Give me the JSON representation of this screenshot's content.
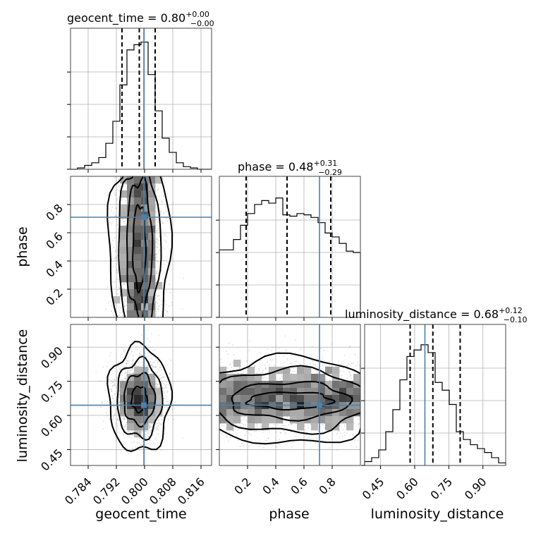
{
  "chart_data": {
    "type": "corner",
    "colors": {
      "truth": "#4682b4",
      "contour": "#000000",
      "samples": "#999999"
    },
    "grid": true,
    "parameters": [
      {
        "name": "geocent_time",
        "range": [
          0.779,
          0.819
        ],
        "ticks": [
          "0.784",
          "0.792",
          "0.800",
          "0.808",
          "0.816"
        ],
        "truth": 0.7998
      },
      {
        "name": "phase",
        "range": [
          0.0,
          1.0
        ],
        "ticks": [
          "0.2",
          "0.4",
          "0.6",
          "0.8"
        ],
        "truth": 0.71
      },
      {
        "name": "luminosity_distance",
        "range": [
          0.38,
          1.0
        ],
        "ticks": [
          "0.45",
          "0.60",
          "0.75",
          "0.90"
        ],
        "truth": 0.645
      }
    ],
    "titles": [
      {
        "param": "geocent_time",
        "text": "geocent_time = 0.80",
        "plus": "+0.00",
        "minus": "−0.00",
        "quantiles": [
          0.7936,
          0.7985,
          0.803
        ]
      },
      {
        "param": "phase",
        "text": "phase = 0.48",
        "plus": "+0.31",
        "minus": "−0.29",
        "quantiles": [
          0.19,
          0.48,
          0.79
        ]
      },
      {
        "param": "luminosity_distance",
        "text": "luminosity_distance = 0.68",
        "plus": "+0.12",
        "minus": "−0.10",
        "quantiles": [
          0.58,
          0.68,
          0.8
        ]
      }
    ],
    "marginals": [
      {
        "param": "geocent_time",
        "bin_edges": [
          0.779,
          0.781,
          0.783,
          0.785,
          0.787,
          0.789,
          0.791,
          0.793,
          0.795,
          0.797,
          0.799,
          0.801,
          0.803,
          0.805,
          0.807,
          0.809,
          0.811,
          0.813,
          0.815,
          0.817,
          0.819
        ],
        "counts": [
          0.0,
          0.01,
          0.03,
          0.05,
          0.09,
          0.2,
          0.37,
          0.65,
          0.92,
          0.96,
          0.98,
          0.73,
          0.45,
          0.24,
          0.13,
          0.05,
          0.02,
          0.01,
          0.0,
          0.0
        ]
      },
      {
        "param": "phase",
        "bin_edges": [
          0.0,
          0.05,
          0.1,
          0.15,
          0.2,
          0.25,
          0.3,
          0.35,
          0.4,
          0.45,
          0.5,
          0.55,
          0.6,
          0.65,
          0.7,
          0.75,
          0.8,
          0.85,
          0.9,
          0.95,
          1.0
        ],
        "counts": [
          0.52,
          0.52,
          0.6,
          0.71,
          0.8,
          0.87,
          0.9,
          0.88,
          0.92,
          0.79,
          0.78,
          0.8,
          0.79,
          0.77,
          0.73,
          0.65,
          0.62,
          0.57,
          0.51,
          0.5
        ]
      },
      {
        "param": "luminosity_distance",
        "bin_edges": [
          0.38,
          0.411,
          0.442,
          0.473,
          0.504,
          0.535,
          0.566,
          0.597,
          0.628,
          0.659,
          0.69,
          0.721,
          0.752,
          0.783,
          0.814,
          0.845,
          0.876,
          0.907,
          0.938,
          0.969,
          1.0
        ],
        "counts": [
          0.03,
          0.06,
          0.12,
          0.26,
          0.43,
          0.66,
          0.84,
          0.89,
          0.93,
          0.87,
          0.64,
          0.58,
          0.47,
          0.26,
          0.2,
          0.16,
          0.13,
          0.1,
          0.06,
          0.02
        ]
      }
    ]
  }
}
